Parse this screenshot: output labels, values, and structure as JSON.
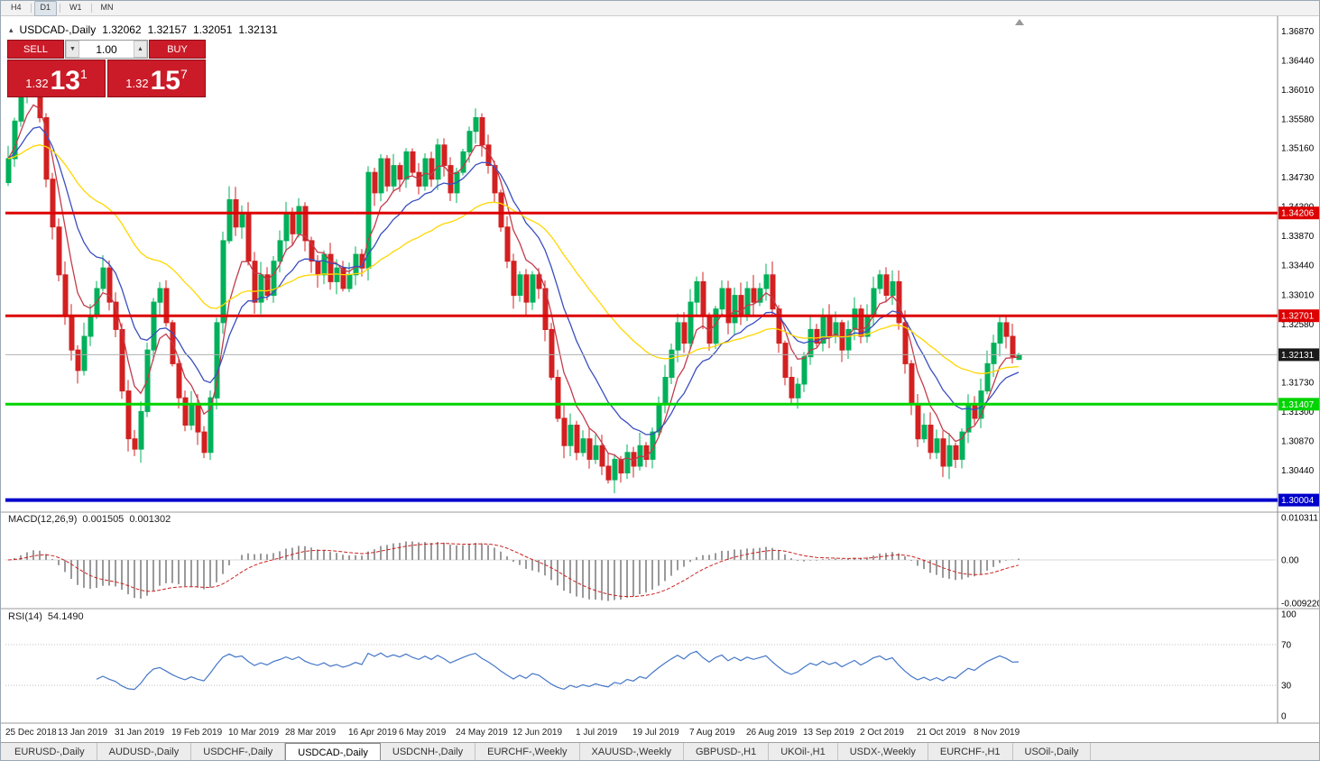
{
  "toolbar": {
    "timeframes": [
      {
        "label": "H4",
        "active": false
      },
      {
        "label": "D1",
        "active": true
      },
      {
        "label": "W1",
        "active": false
      },
      {
        "label": "MN",
        "active": false
      }
    ]
  },
  "chart_header": {
    "collapse_icon": "▴",
    "symbol": "USDCAD-,Daily",
    "open": "1.32062",
    "high": "1.32157",
    "low": "1.32051",
    "close": "1.32131"
  },
  "trade_panel": {
    "sell_label": "SELL",
    "buy_label": "BUY",
    "volume": "1.00",
    "volume_down_icon": "▼",
    "volume_up_icon": "▲",
    "sell_price": {
      "small": "1.32",
      "big": "13",
      "sup": "1"
    },
    "buy_price": {
      "small": "1.32",
      "big": "15",
      "sup": "7"
    }
  },
  "price_axis": {
    "ticks": [
      "1.36870",
      "1.36440",
      "1.36010",
      "1.35580",
      "1.35160",
      "1.34730",
      "1.34300",
      "1.33870",
      "1.33440",
      "1.33010",
      "1.32580",
      "1.32150",
      "1.31730",
      "1.31300",
      "1.30870",
      "1.30440"
    ]
  },
  "levels": [
    {
      "value": 1.34206,
      "label": "1.34206",
      "color": "#dd0000",
      "width": 3
    },
    {
      "value": 1.32701,
      "label": "1.32701",
      "color": "#dd0000",
      "width": 3
    },
    {
      "value": 1.31407,
      "label": "1.31407",
      "color": "#00d400",
      "width": 3
    },
    {
      "value": 1.30004,
      "label": "1.30004",
      "color": "#0000cc",
      "width": 4
    }
  ],
  "current_price": {
    "value": 1.32131,
    "label": "1.32131",
    "line_color": "#b0b0b0",
    "badge_color": "#1a1a1a"
  },
  "x_axis": {
    "labels": [
      {
        "text": "25 Dec 2018",
        "i": 0
      },
      {
        "text": "13 Jan 2019",
        "i": 10
      },
      {
        "text": "31 Jan 2019",
        "i": 19
      },
      {
        "text": "19 Feb 2019",
        "i": 28
      },
      {
        "text": "10 Mar 2019",
        "i": 37
      },
      {
        "text": "28 Mar 2019",
        "i": 46
      },
      {
        "text": "16 Apr 2019",
        "i": 56
      },
      {
        "text": "6 May 2019",
        "i": 64
      },
      {
        "text": "24 May 2019",
        "i": 73
      },
      {
        "text": "12 Jun 2019",
        "i": 82
      },
      {
        "text": "1 Jul 2019",
        "i": 92
      },
      {
        "text": "19 Jul 2019",
        "i": 101
      },
      {
        "text": "7 Aug 2019",
        "i": 110
      },
      {
        "text": "26 Aug 2019",
        "i": 119
      },
      {
        "text": "13 Sep 2019",
        "i": 128
      },
      {
        "text": "2 Oct 2019",
        "i": 137
      },
      {
        "text": "21 Oct 2019",
        "i": 146
      },
      {
        "text": "8 Nov 2019",
        "i": 155
      }
    ]
  },
  "indicators": {
    "macd": {
      "label": "MACD(12,26,9)",
      "value1": "0.001505",
      "value2": "0.001302",
      "fast": 12,
      "slow": 26,
      "signal": 9,
      "scale_max": "0.010311",
      "scale_zero": "0.00",
      "scale_min": "-0.0092203",
      "histogram_color": "#9a9a9a",
      "signal_color": "#cc2222"
    },
    "rsi": {
      "label": "RSI(14)",
      "value": "54.1490",
      "period": 14,
      "levels": [
        100,
        70,
        30,
        0
      ],
      "dotted": [
        70,
        30
      ],
      "line_color": "#4577c8"
    }
  },
  "chart_data": {
    "type": "candlestick",
    "symbol": "USDCAD",
    "timeframe": "Daily",
    "ylim": [
      1.2984,
      1.3694
    ],
    "ohlc_last": {
      "open": 1.32062,
      "high": 1.32157,
      "low": 1.32051,
      "close": 1.32131
    },
    "closes": [
      1.35,
      1.3555,
      1.36,
      1.3625,
      1.3615,
      1.356,
      1.347,
      1.34,
      1.333,
      1.327,
      1.322,
      1.319,
      1.324,
      1.327,
      1.331,
      1.334,
      1.329,
      1.325,
      1.316,
      1.309,
      1.3075,
      1.313,
      1.322,
      1.329,
      1.331,
      1.326,
      1.32,
      1.315,
      1.311,
      1.314,
      1.31,
      1.307,
      1.315,
      1.326,
      1.338,
      1.344,
      1.34,
      1.342,
      1.335,
      1.329,
      1.333,
      1.33,
      1.335,
      1.338,
      1.342,
      1.339,
      1.343,
      1.338,
      1.335,
      1.333,
      1.336,
      1.332,
      1.334,
      1.331,
      1.333,
      1.336,
      1.334,
      1.348,
      1.345,
      1.35,
      1.346,
      1.349,
      1.347,
      1.351,
      1.348,
      1.346,
      1.35,
      1.347,
      1.352,
      1.349,
      1.345,
      1.348,
      1.351,
      1.354,
      1.356,
      1.352,
      1.349,
      1.345,
      1.34,
      1.335,
      1.33,
      1.333,
      1.329,
      1.333,
      1.331,
      1.325,
      1.318,
      1.312,
      1.308,
      1.311,
      1.307,
      1.309,
      1.306,
      1.308,
      1.305,
      1.303,
      1.306,
      1.304,
      1.307,
      1.305,
      1.308,
      1.306,
      1.31,
      1.314,
      1.318,
      1.322,
      1.326,
      1.323,
      1.329,
      1.332,
      1.327,
      1.323,
      1.328,
      1.331,
      1.326,
      1.33,
      1.327,
      1.331,
      1.329,
      1.331,
      1.333,
      1.328,
      1.323,
      1.318,
      1.315,
      1.317,
      1.321,
      1.325,
      1.323,
      1.327,
      1.324,
      1.326,
      1.322,
      1.325,
      1.328,
      1.324,
      1.327,
      1.331,
      1.333,
      1.33,
      1.332,
      1.326,
      1.32,
      1.314,
      1.309,
      1.311,
      1.307,
      1.309,
      1.305,
      1.308,
      1.306,
      1.31,
      1.314,
      1.312,
      1.316,
      1.32,
      1.323,
      1.326,
      1.324,
      1.321,
      1.32131
    ],
    "moving_averages": [
      {
        "period": 6,
        "color": "#c23b4b"
      },
      {
        "period": 14,
        "color": "#3a4ec0"
      },
      {
        "period": 40,
        "color": "#ffd700"
      }
    ],
    "colors": {
      "up": "#00b05a",
      "down": "#d32020"
    }
  },
  "tabs": [
    {
      "label": "EURUSD-,Daily",
      "active": false
    },
    {
      "label": "AUDUSD-,Daily",
      "active": false
    },
    {
      "label": "USDCHF-,Daily",
      "active": false
    },
    {
      "label": "USDCAD-,Daily",
      "active": true
    },
    {
      "label": "USDCNH-,Daily",
      "active": false
    },
    {
      "label": "EURCHF-,Weekly",
      "active": false
    },
    {
      "label": "XAUUSD-,Weekly",
      "active": false
    },
    {
      "label": "GBPUSD-,H1",
      "active": false
    },
    {
      "label": "UKOil-,H1",
      "active": false
    },
    {
      "label": "USDX-,Weekly",
      "active": false
    },
    {
      "label": "EURCHF-,H1",
      "active": false
    },
    {
      "label": "USOil-,Daily",
      "active": false
    }
  ]
}
